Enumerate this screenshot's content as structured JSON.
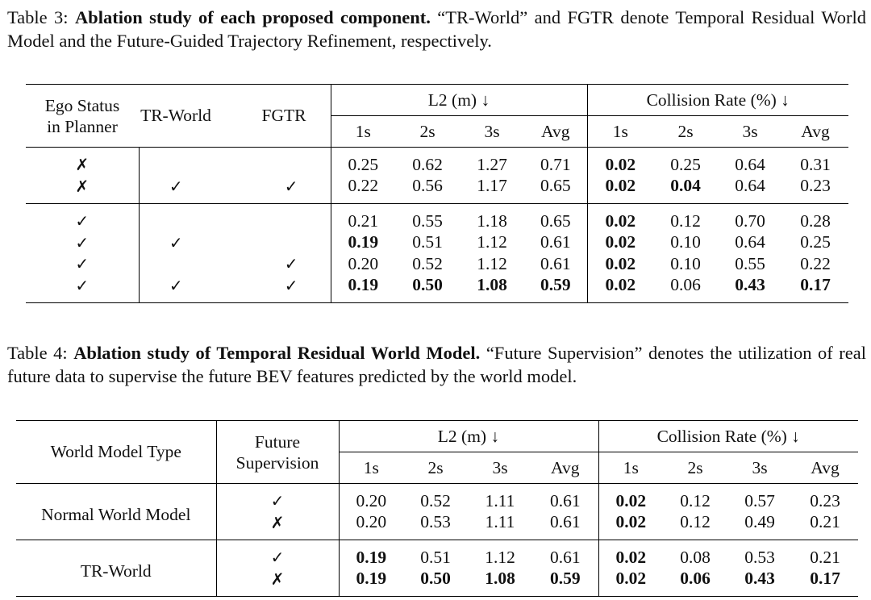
{
  "table3": {
    "label": "Table 3:",
    "title": "Ablation study of each proposed component.",
    "description": "“TR-World” and FGTR denote Temporal Residual World Model and the Future-Guided Trajectory Refinement, respectively.",
    "headers": {
      "ego_line1": "Ego Status",
      "ego_line2": "in Planner",
      "tr_world": "TR-World",
      "fgtr": "FGTR",
      "l2": "L2 (m) ↓",
      "collision": "Collision Rate (%) ↓",
      "cols": [
        "1s",
        "2s",
        "3s",
        "Avg",
        "1s",
        "2s",
        "3s",
        "Avg"
      ]
    },
    "groups": [
      [
        {
          "ego": "✗",
          "tr": "",
          "fgtr": "",
          "l2": [
            "0.25",
            "0.62",
            "1.27",
            "0.71"
          ],
          "cr": [
            "0.02",
            "0.25",
            "0.64",
            "0.31"
          ],
          "bold_l2": [
            false,
            false,
            false,
            false
          ],
          "bold_cr": [
            true,
            false,
            false,
            false
          ]
        },
        {
          "ego": "✗",
          "tr": "✓",
          "fgtr": "✓",
          "l2": [
            "0.22",
            "0.56",
            "1.17",
            "0.65"
          ],
          "cr": [
            "0.02",
            "0.04",
            "0.64",
            "0.23"
          ],
          "bold_l2": [
            false,
            false,
            false,
            false
          ],
          "bold_cr": [
            true,
            true,
            false,
            false
          ]
        }
      ],
      [
        {
          "ego": "✓",
          "tr": "",
          "fgtr": "",
          "l2": [
            "0.21",
            "0.55",
            "1.18",
            "0.65"
          ],
          "cr": [
            "0.02",
            "0.12",
            "0.70",
            "0.28"
          ],
          "bold_l2": [
            false,
            false,
            false,
            false
          ],
          "bold_cr": [
            true,
            false,
            false,
            false
          ]
        },
        {
          "ego": "✓",
          "tr": "✓",
          "fgtr": "",
          "l2": [
            "0.19",
            "0.51",
            "1.12",
            "0.61"
          ],
          "cr": [
            "0.02",
            "0.10",
            "0.64",
            "0.25"
          ],
          "bold_l2": [
            true,
            false,
            false,
            false
          ],
          "bold_cr": [
            true,
            false,
            false,
            false
          ]
        },
        {
          "ego": "✓",
          "tr": "",
          "fgtr": "✓",
          "l2": [
            "0.20",
            "0.52",
            "1.12",
            "0.61"
          ],
          "cr": [
            "0.02",
            "0.10",
            "0.55",
            "0.22"
          ],
          "bold_l2": [
            false,
            false,
            false,
            false
          ],
          "bold_cr": [
            true,
            false,
            false,
            false
          ]
        },
        {
          "ego": "✓",
          "tr": "✓",
          "fgtr": "✓",
          "l2": [
            "0.19",
            "0.50",
            "1.08",
            "0.59"
          ],
          "cr": [
            "0.02",
            "0.06",
            "0.43",
            "0.17"
          ],
          "bold_l2": [
            true,
            true,
            true,
            true
          ],
          "bold_cr": [
            true,
            false,
            true,
            true
          ]
        }
      ]
    ]
  },
  "table4": {
    "label": "Table 4:",
    "title": "Ablation study of Temporal Residual World Model.",
    "description": "“Future Supervision” denotes the utilization of real future data to supervise the future BEV features predicted by the world model.",
    "headers": {
      "type": "World Model Type",
      "fs_line1": "Future",
      "fs_line2": "Supervision",
      "l2": "L2 (m) ↓",
      "collision": "Collision Rate (%) ↓",
      "cols": [
        "1s",
        "2s",
        "3s",
        "Avg",
        "1s",
        "2s",
        "3s",
        "Avg"
      ]
    },
    "groups": [
      {
        "type": "Normal World Model",
        "rows": [
          {
            "fs": "✓",
            "l2": [
              "0.20",
              "0.52",
              "1.11",
              "0.61"
            ],
            "cr": [
              "0.02",
              "0.12",
              "0.57",
              "0.23"
            ],
            "bold_l2": [
              false,
              false,
              false,
              false
            ],
            "bold_cr": [
              true,
              false,
              false,
              false
            ]
          },
          {
            "fs": "✗",
            "l2": [
              "0.20",
              "0.53",
              "1.11",
              "0.61"
            ],
            "cr": [
              "0.02",
              "0.12",
              "0.49",
              "0.21"
            ],
            "bold_l2": [
              false,
              false,
              false,
              false
            ],
            "bold_cr": [
              true,
              false,
              false,
              false
            ]
          }
        ]
      },
      {
        "type": "TR-World",
        "rows": [
          {
            "fs": "✓",
            "l2": [
              "0.19",
              "0.51",
              "1.12",
              "0.61"
            ],
            "cr": [
              "0.02",
              "0.08",
              "0.53",
              "0.21"
            ],
            "bold_l2": [
              true,
              false,
              false,
              false
            ],
            "bold_cr": [
              true,
              false,
              false,
              false
            ]
          },
          {
            "fs": "✗",
            "l2": [
              "0.19",
              "0.50",
              "1.08",
              "0.59"
            ],
            "cr": [
              "0.02",
              "0.06",
              "0.43",
              "0.17"
            ],
            "bold_l2": [
              true,
              true,
              true,
              true
            ],
            "bold_cr": [
              true,
              true,
              true,
              true
            ]
          }
        ]
      }
    ]
  }
}
